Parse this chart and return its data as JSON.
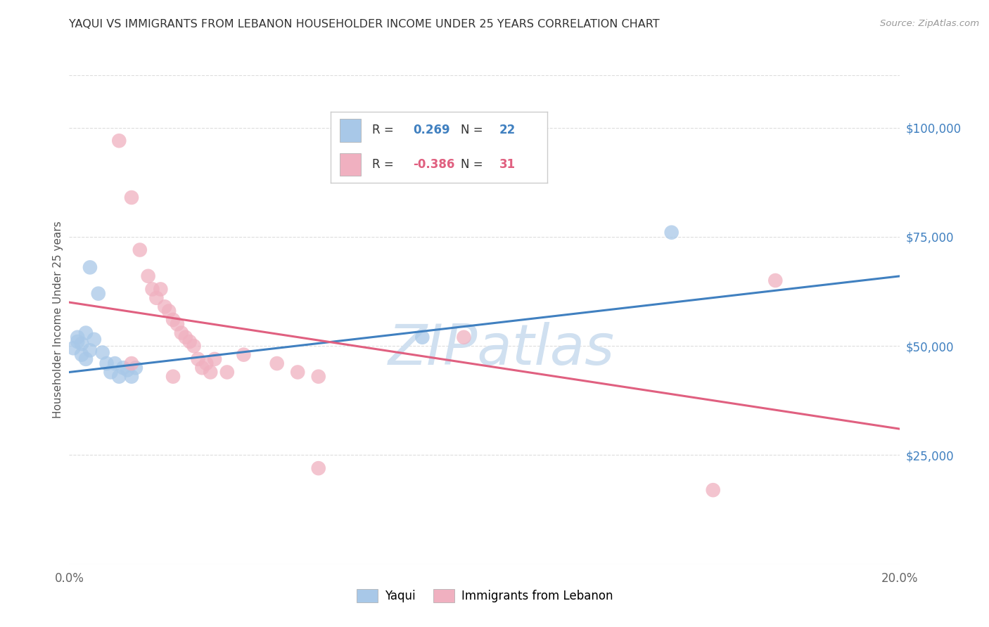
{
  "title": "YAQUI VS IMMIGRANTS FROM LEBANON HOUSEHOLDER INCOME UNDER 25 YEARS CORRELATION CHART",
  "source": "Source: ZipAtlas.com",
  "ylabel": "Householder Income Under 25 years",
  "legend_blue_r": "0.269",
  "legend_blue_n": "22",
  "legend_pink_r": "-0.386",
  "legend_pink_n": "31",
  "yaxis_labels": [
    "$25,000",
    "$50,000",
    "$75,000",
    "$100,000"
  ],
  "yaxis_values": [
    25000,
    50000,
    75000,
    100000
  ],
  "ylim": [
    0,
    112000
  ],
  "xlim": [
    0.0,
    0.2
  ],
  "background_color": "#ffffff",
  "grid_color": "#dddddd",
  "blue_color": "#a8c8e8",
  "pink_color": "#f0b0c0",
  "blue_line_color": "#4080c0",
  "pink_line_color": "#e06080",
  "watermark_color": "#d0e0f0",
  "blue_scatter": [
    [
      0.001,
      49500
    ],
    [
      0.002,
      51000
    ],
    [
      0.002,
      52000
    ],
    [
      0.003,
      48000
    ],
    [
      0.003,
      50500
    ],
    [
      0.004,
      47000
    ],
    [
      0.004,
      53000
    ],
    [
      0.005,
      49000
    ],
    [
      0.005,
      68000
    ],
    [
      0.006,
      51500
    ],
    [
      0.007,
      62000
    ],
    [
      0.008,
      48500
    ],
    [
      0.009,
      46000
    ],
    [
      0.01,
      44000
    ],
    [
      0.011,
      46000
    ],
    [
      0.012,
      43000
    ],
    [
      0.013,
      45000
    ],
    [
      0.014,
      44500
    ],
    [
      0.015,
      43000
    ],
    [
      0.016,
      45000
    ],
    [
      0.145,
      76000
    ],
    [
      0.085,
      52000
    ]
  ],
  "pink_scatter": [
    [
      0.012,
      97000
    ],
    [
      0.015,
      84000
    ],
    [
      0.017,
      72000
    ],
    [
      0.019,
      66000
    ],
    [
      0.02,
      63000
    ],
    [
      0.021,
      61000
    ],
    [
      0.022,
      63000
    ],
    [
      0.023,
      59000
    ],
    [
      0.024,
      58000
    ],
    [
      0.025,
      56000
    ],
    [
      0.026,
      55000
    ],
    [
      0.027,
      53000
    ],
    [
      0.028,
      52000
    ],
    [
      0.029,
      51000
    ],
    [
      0.03,
      50000
    ],
    [
      0.031,
      47000
    ],
    [
      0.032,
      45000
    ],
    [
      0.033,
      46000
    ],
    [
      0.034,
      44000
    ],
    [
      0.035,
      47000
    ],
    [
      0.038,
      44000
    ],
    [
      0.042,
      48000
    ],
    [
      0.05,
      46000
    ],
    [
      0.055,
      44000
    ],
    [
      0.06,
      43000
    ],
    [
      0.015,
      46000
    ],
    [
      0.025,
      43000
    ],
    [
      0.06,
      22000
    ],
    [
      0.095,
      52000
    ],
    [
      0.155,
      17000
    ],
    [
      0.17,
      65000
    ]
  ],
  "blue_line_x": [
    0.0,
    0.2
  ],
  "blue_line_y": [
    44000,
    66000
  ],
  "pink_line_x": [
    0.0,
    0.2
  ],
  "pink_line_y": [
    60000,
    31000
  ]
}
